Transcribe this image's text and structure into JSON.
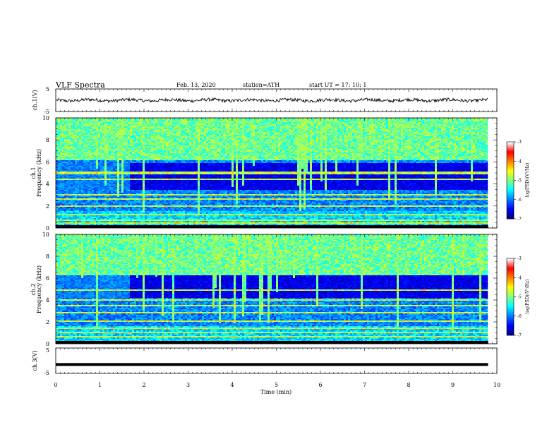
{
  "header": {
    "title": "VLF  Spectra",
    "date": "Feb. 13, 2020",
    "station": "station=ATH",
    "start": "start  UT  =   17: 10: 1"
  },
  "chart_data": [
    {
      "type": "line",
      "panel": "ch1-waveform",
      "ylabel": "ch.1(V)",
      "ylim": [
        -5,
        5
      ],
      "y_ticks": [
        "5",
        "-5"
      ],
      "baseline_mean": 0,
      "noise_amplitude": 0.7
    },
    {
      "type": "heatmap",
      "panel": "ch1-spectrogram",
      "ylabel_top": "ch.1",
      "ylabel": "Frequency  (kHz)",
      "ylim": [
        0,
        10
      ],
      "y_ticks": [
        "0",
        "2",
        "4",
        "6",
        "8",
        "10"
      ],
      "xlim": [
        0,
        9.8
      ],
      "features": {
        "band_change_time_min": 1.7,
        "quiet_band_khz": [
          3.4,
          5.9
        ],
        "strong_lines_khz": [
          0.4,
          0.7,
          1.2,
          2.0,
          2.6,
          3.0,
          4.4,
          5.0
        ]
      },
      "colorbar": {
        "label": "log(PSD)(V²/Hz)",
        "ticks": [
          "-3",
          "-4",
          "-5",
          "-6",
          "-7"
        ],
        "range": [
          -7,
          -3
        ]
      }
    },
    {
      "type": "heatmap",
      "panel": "ch2-spectrogram",
      "ylabel_top": "ch.2",
      "ylabel": "Frequency  (kHz)",
      "ylim": [
        0,
        10
      ],
      "y_ticks": [
        "0",
        "2",
        "4",
        "6",
        "8",
        "10"
      ],
      "xlim": [
        0,
        9.8
      ],
      "features": {
        "band_change_time_min": 1.7,
        "quiet_band_khz": [
          4.2,
          6.4
        ],
        "strong_lines_khz": [
          0.6,
          1.0,
          1.4,
          2.0,
          2.8,
          3.4,
          4.0,
          4.9
        ]
      },
      "colorbar": {
        "label": "log(PSD)(V²/Hz)",
        "ticks": [
          "-3",
          "-4",
          "-5",
          "-6",
          "-7"
        ],
        "range": [
          -7,
          -3
        ]
      }
    },
    {
      "type": "line",
      "panel": "ch3-waveform",
      "ylabel": "ch.3(V)",
      "ylim": [
        -5,
        5
      ],
      "y_ticks": [
        "5",
        "-5"
      ],
      "constant_value": -1.5
    }
  ],
  "xaxis": {
    "label": "Time  (min)",
    "xlim": [
      0,
      10
    ],
    "ticks": [
      "0",
      "1",
      "2",
      "3",
      "4",
      "5",
      "6",
      "7",
      "8",
      "9",
      "10"
    ]
  },
  "colors": {
    "colormap": [
      "#00008f",
      "#0000ff",
      "#0080ff",
      "#00ffff",
      "#80ff80",
      "#ffff00",
      "#ff8000",
      "#ff0000",
      "#ffffff"
    ]
  }
}
